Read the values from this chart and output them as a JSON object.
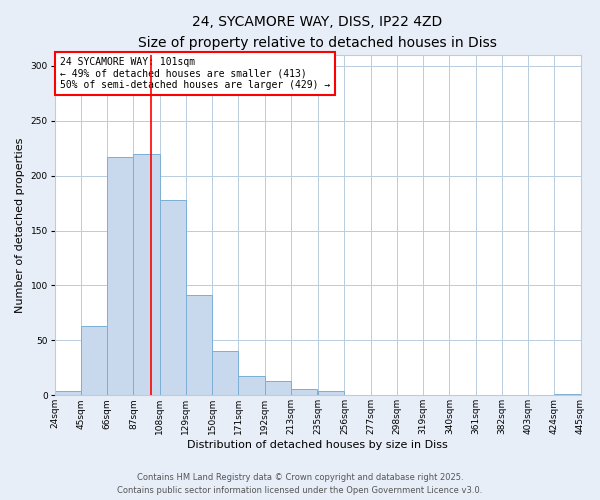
{
  "title_line1": "24, SYCAMORE WAY, DISS, IP22 4ZD",
  "title_line2": "Size of property relative to detached houses in Diss",
  "xlabel": "Distribution of detached houses by size in Diss",
  "ylabel": "Number of detached properties",
  "bar_left_edges": [
    24,
    45,
    66,
    87,
    108,
    129,
    150,
    171,
    192,
    213,
    235,
    256,
    277,
    298,
    319,
    340,
    361,
    382,
    403,
    424
  ],
  "bar_heights": [
    4,
    63,
    217,
    220,
    178,
    91,
    40,
    18,
    13,
    6,
    4,
    0,
    0,
    0,
    0,
    0,
    0,
    0,
    0,
    1
  ],
  "bin_width": 21,
  "bar_color": "#c8d9ee",
  "bar_edge_color": "#7aafd4",
  "vline_x": 101,
  "vline_color": "red",
  "ylim": [
    0,
    310
  ],
  "yticks": [
    0,
    50,
    100,
    150,
    200,
    250,
    300
  ],
  "tick_labels": [
    "24sqm",
    "45sqm",
    "66sqm",
    "87sqm",
    "108sqm",
    "129sqm",
    "150sqm",
    "171sqm",
    "192sqm",
    "213sqm",
    "235sqm",
    "256sqm",
    "277sqm",
    "298sqm",
    "319sqm",
    "340sqm",
    "361sqm",
    "382sqm",
    "403sqm",
    "424sqm",
    "445sqm"
  ],
  "annotation_title": "24 SYCAMORE WAY: 101sqm",
  "annotation_line2": "← 49% of detached houses are smaller (413)",
  "annotation_line3": "50% of semi-detached houses are larger (429) →",
  "annotation_box_color": "red",
  "annotation_bg": "white",
  "footnote1": "Contains HM Land Registry data © Crown copyright and database right 2025.",
  "footnote2": "Contains public sector information licensed under the Open Government Licence v3.0.",
  "bg_color": "#e8eef8",
  "plot_bg_color": "white",
  "grid_color": "#b8cde0",
  "title_fontsize": 10,
  "subtitle_fontsize": 9,
  "axis_label_fontsize": 8,
  "tick_fontsize": 6.5,
  "annotation_fontsize": 7,
  "footnote_fontsize": 6
}
